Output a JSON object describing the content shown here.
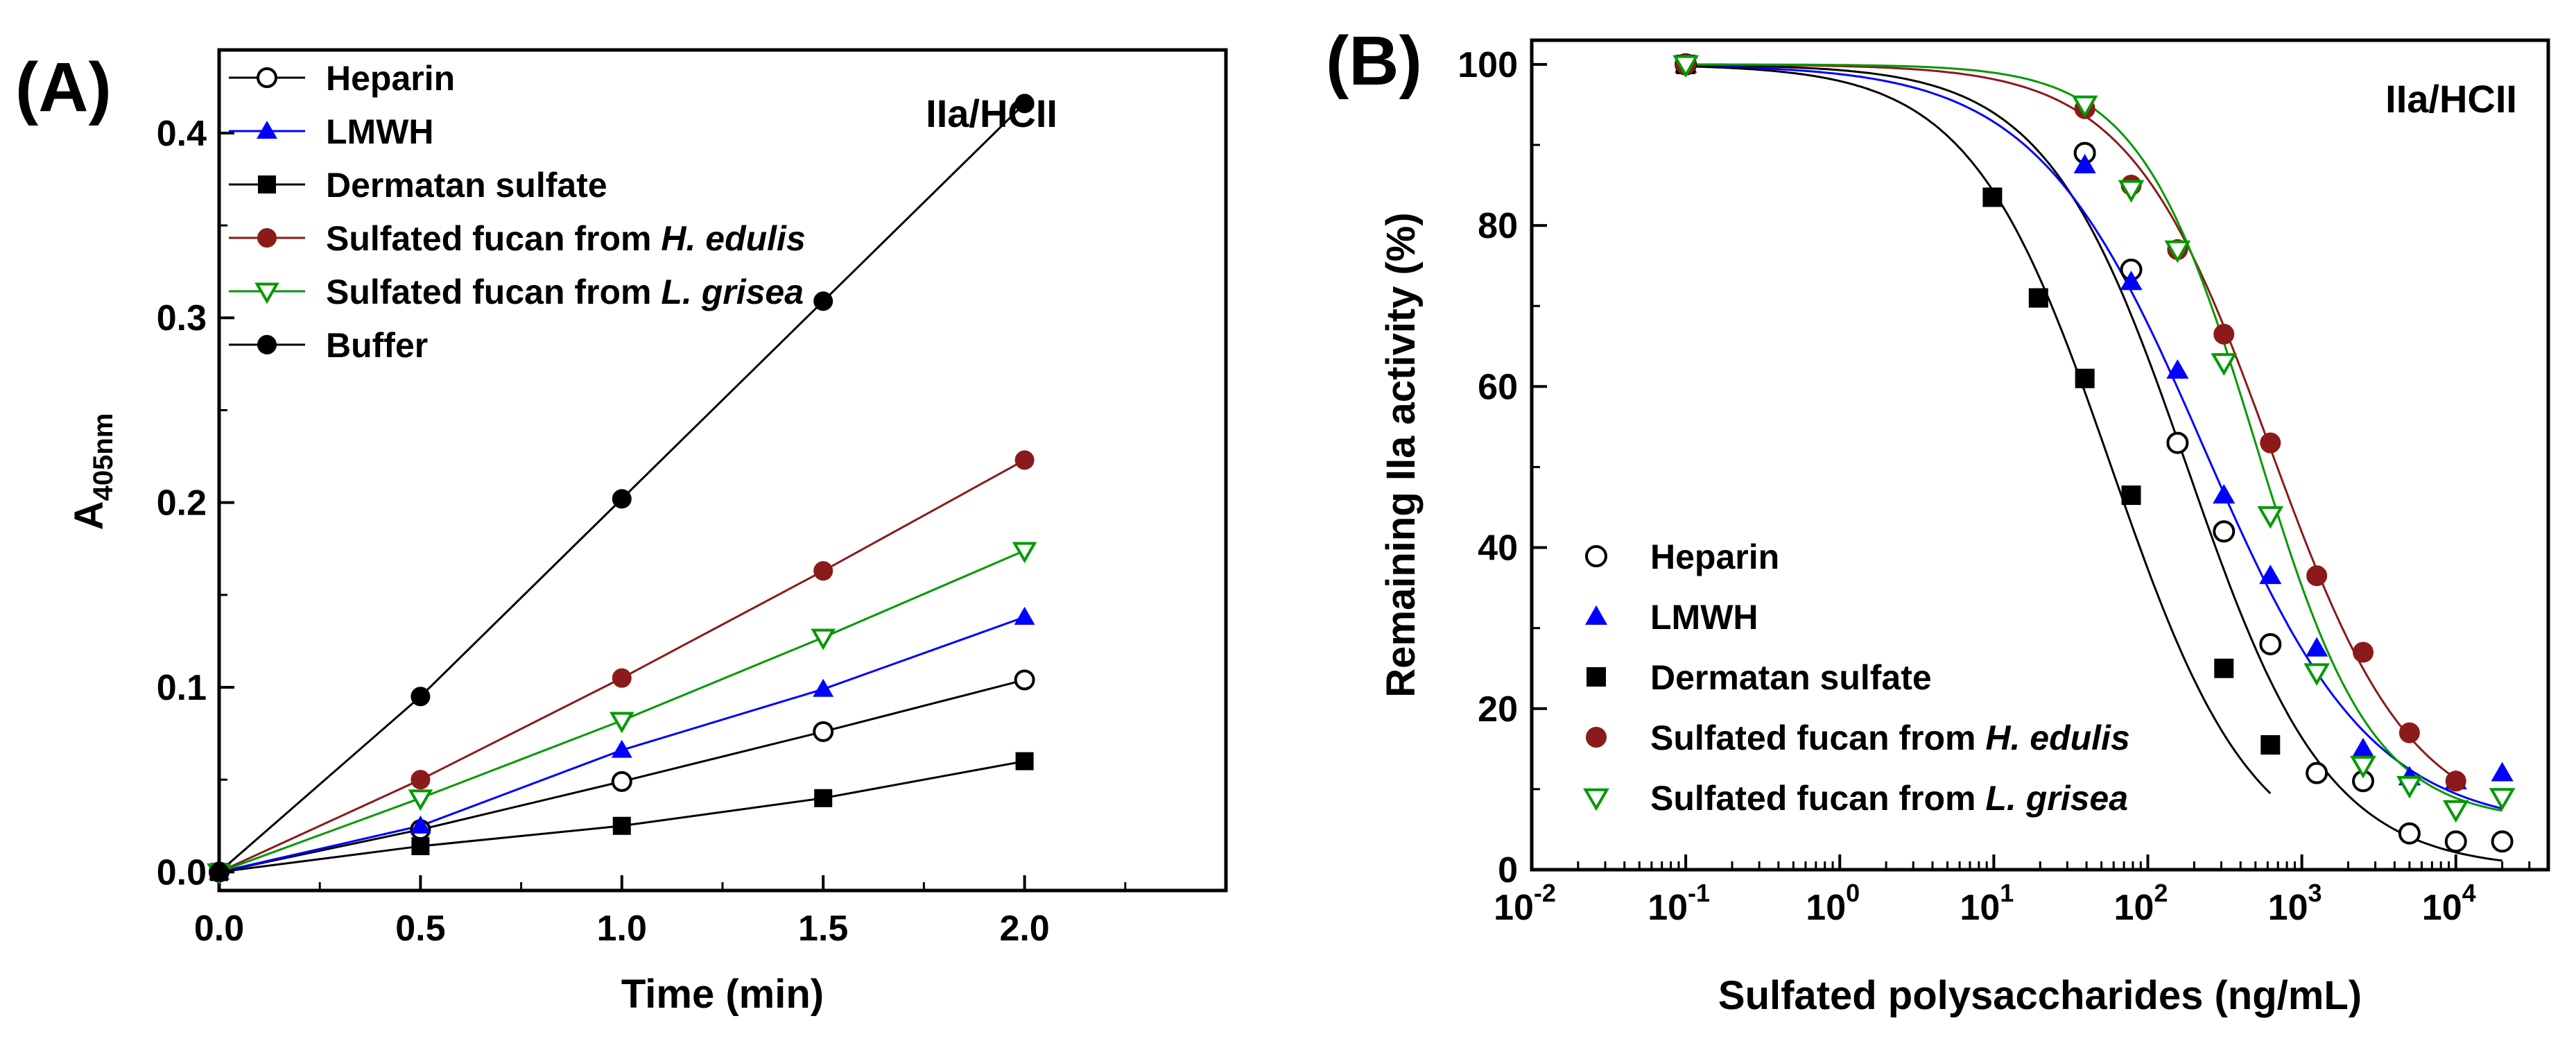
{
  "chart_data": [
    {
      "panel_label": "(A)",
      "type": "line",
      "annotation": "IIa/HCII",
      "xlabel": "Time (min)",
      "ylabel_main": "A",
      "ylabel_sub": "405nm",
      "xlim": [
        0,
        2.5
      ],
      "ylim": [
        -0.01,
        0.445
      ],
      "xticks": [
        "0.0",
        "0.5",
        "1.0",
        "1.5",
        "2.0"
      ],
      "yticks": [
        "0.0",
        "0.1",
        "0.2",
        "0.3",
        "0.4"
      ],
      "legend_position": "top-left",
      "x": [
        0,
        0.5,
        1.0,
        1.5,
        2.0
      ],
      "series": [
        {
          "name_plain": "Heparin",
          "name_italic": "",
          "marker": "circle-open",
          "color": "#000000",
          "values": [
            0,
            0.023,
            0.049,
            0.076,
            0.104
          ]
        },
        {
          "name_plain": "LMWH",
          "name_italic": "",
          "marker": "triangle-up-filled",
          "color": "#0000ff",
          "values": [
            0,
            0.025,
            0.066,
            0.099,
            0.138
          ]
        },
        {
          "name_plain": "Dermatan sulfate",
          "name_italic": "",
          "marker": "square-filled",
          "color": "#000000",
          "values": [
            0,
            0.014,
            0.025,
            0.04,
            0.06
          ]
        },
        {
          "name_plain": "Sulfated fucan from ",
          "name_italic": "H. edulis",
          "marker": "circle-filled",
          "color": "#8b1a1a",
          "values": [
            0,
            0.05,
            0.105,
            0.163,
            0.223
          ]
        },
        {
          "name_plain": "Sulfated fucan from ",
          "name_italic": "L. grisea",
          "marker": "triangle-down-open",
          "color": "#009900",
          "values": [
            0,
            0.04,
            0.082,
            0.127,
            0.174
          ]
        },
        {
          "name_plain": "Buffer",
          "name_italic": "",
          "marker": "circle-filled",
          "color": "#000000",
          "values": [
            0,
            0.095,
            0.202,
            0.309,
            0.416
          ]
        }
      ]
    },
    {
      "panel_label": "(B)",
      "type": "scatter",
      "xscale": "log",
      "annotation": "IIa/HCII",
      "xlabel": "Sulfated polysaccharides (ng/mL)",
      "ylabel": "Remaining IIa activity (%)",
      "xlim_log10": [
        -2,
        4.6
      ],
      "ylim": [
        0,
        103
      ],
      "xticks": [
        {
          "base": "10",
          "exp": "-2",
          "log": -2
        },
        {
          "base": "10",
          "exp": "-1",
          "log": -1
        },
        {
          "base": "10",
          "exp": "0",
          "log": 0
        },
        {
          "base": "10",
          "exp": "1",
          "log": 1
        },
        {
          "base": "10",
          "exp": "2",
          "log": 2
        },
        {
          "base": "10",
          "exp": "3",
          "log": 3
        },
        {
          "base": "10",
          "exp": "4",
          "log": 4
        }
      ],
      "yticks": [
        "0",
        "20",
        "40",
        "60",
        "80",
        "100"
      ],
      "legend_position": "bottom-left",
      "series": [
        {
          "name_plain": "Heparin",
          "name_italic": "",
          "marker": "circle-open",
          "color": "#000000",
          "x": [
            0.1,
            39,
            78,
            156,
            312,
            625,
            1250,
            2500,
            5000,
            10000,
            20000
          ],
          "values": [
            100,
            89,
            74.5,
            53,
            42,
            28,
            12,
            11,
            4.5,
            3.5,
            3.5
          ],
          "fit": {
            "ic50": 180,
            "hill": 0.95,
            "bottom": 0
          }
        },
        {
          "name_plain": "LMWH",
          "name_italic": "",
          "marker": "triangle-up-filled",
          "color": "#0000ff",
          "x": [
            0.1,
            39,
            78,
            156,
            312,
            625,
            1250,
            2500,
            5000,
            10000,
            20000
          ],
          "values": [
            100,
            87.5,
            73,
            62,
            46.5,
            36.5,
            27.5,
            15,
            11.5,
            11,
            12
          ],
          "fit": {
            "ic50": 230,
            "hill": 0.8,
            "bottom": 5
          }
        },
        {
          "name_plain": "Dermatan sulfate",
          "name_italic": "",
          "marker": "square-filled",
          "color": "#000000",
          "x": [
            0.1,
            9.8,
            19.5,
            39,
            78,
            312,
            625
          ],
          "values": [
            100,
            83.5,
            71,
            61,
            46.5,
            25,
            15.5
          ],
          "fit": {
            "ic50": 58,
            "hill": 0.95,
            "bottom": 0
          }
        },
        {
          "name_plain": "Sulfated fucan from ",
          "name_italic": "H. edulis",
          "marker": "circle-filled",
          "color": "#8b1a1a",
          "x": [
            0.1,
            39,
            78,
            156,
            312,
            625,
            1250,
            2500,
            5000,
            10000
          ],
          "values": [
            100,
            94.5,
            85,
            77,
            66.5,
            53,
            36.5,
            27,
            17,
            11
          ],
          "fit": {
            "ic50": 620,
            "hill": 0.95,
            "bottom": 5
          }
        },
        {
          "name_plain": "Sulfated fucan from ",
          "name_italic": "L. grisea",
          "marker": "triangle-down-open",
          "color": "#009900",
          "x": [
            0.1,
            39,
            78,
            156,
            312,
            625,
            1250,
            2500,
            5000,
            10000,
            20000
          ],
          "values": [
            100,
            95,
            84.5,
            77,
            63,
            44,
            24.5,
            13,
            10.5,
            7.5,
            9
          ],
          "fit": {
            "ic50": 500,
            "hill": 1.15,
            "bottom": 6
          }
        }
      ]
    }
  ]
}
